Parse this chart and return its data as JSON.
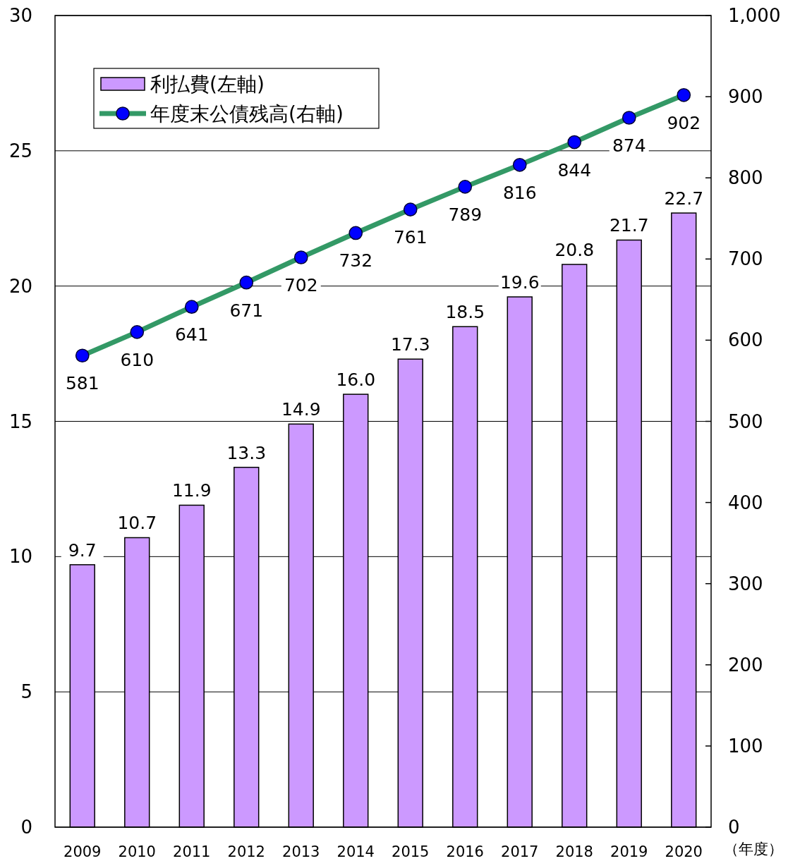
{
  "chart_data": {
    "type": "bar",
    "categories": [
      "2009",
      "2010",
      "2011",
      "2012",
      "2013",
      "2014",
      "2015",
      "2016",
      "2017",
      "2018",
      "2019",
      "2020"
    ],
    "xlabel": "（年度）",
    "series": [
      {
        "name": "利払費(左軸)",
        "color": "#cc99ff",
        "values": [
          9.7,
          10.7,
          11.9,
          13.3,
          14.9,
          16.0,
          17.3,
          18.5,
          19.6,
          20.8,
          21.7,
          22.7
        ],
        "value_labels": [
          "9.7",
          "10.7",
          "11.9",
          "13.3",
          "14.9",
          "16.0",
          "17.3",
          "18.5",
          "19.6",
          "20.8",
          "21.7",
          "22.7"
        ]
      },
      {
        "name": "年度末公債残高(右軸)",
        "type": "line",
        "axis": "y2",
        "color": "#339966",
        "values": [
          581,
          610,
          641,
          671,
          702,
          732,
          761,
          789,
          816,
          844,
          874,
          902
        ]
      }
    ],
    "data_labels": true,
    "marker": "circle",
    "grid": "y",
    "legend": "top left",
    "ylim": [
      0,
      30
    ],
    "yticks": [
      0,
      5,
      10,
      15,
      20,
      25,
      30
    ],
    "y2lim": [
      0,
      1000
    ],
    "y2ticks": [
      0,
      100,
      200,
      300,
      400,
      500,
      600,
      700,
      800,
      900,
      {
        "value": 1000,
        "label": "1,000"
      }
    ]
  }
}
